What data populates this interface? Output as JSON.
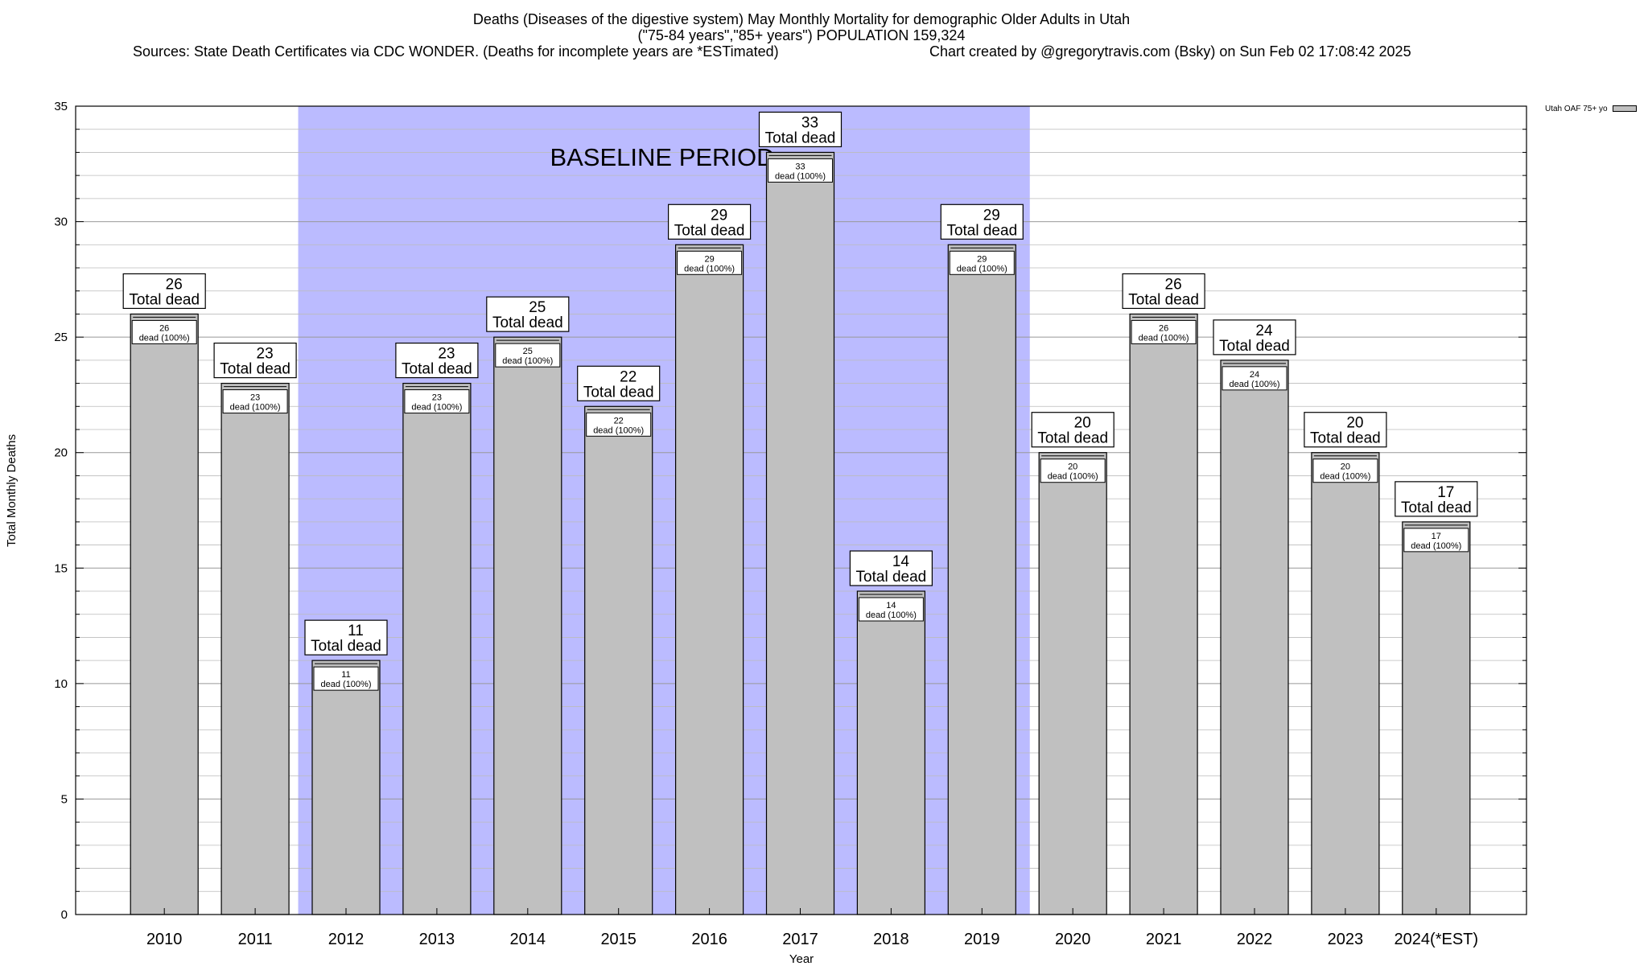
{
  "title": {
    "line1": "Deaths (Diseases of the digestive system) May Monthly Mortality for demographic Older Adults in Utah",
    "line2": "(\"75-84 years\",\"85+ years\") POPULATION 159,324",
    "sources": "Sources: State Death Certificates via CDC WONDER. (Deaths for incomplete years are *ESTimated)",
    "credit": "Chart created by @gregorytravis.com (Bsky) on Sun Feb 02 17:08:42 2025"
  },
  "legend": {
    "label": "Utah OAF 75+ yo"
  },
  "chart_data": {
    "type": "bar",
    "categories": [
      "2010",
      "2011",
      "2012",
      "2013",
      "2014",
      "2015",
      "2016",
      "2017",
      "2018",
      "2019",
      "2020",
      "2021",
      "2022",
      "2023",
      "2024(*EST)"
    ],
    "series": [
      {
        "name": "Utah OAF 75+ yo",
        "values": [
          26,
          23,
          11,
          23,
          25,
          22,
          29,
          33,
          14,
          29,
          20,
          26,
          24,
          20,
          17
        ]
      }
    ],
    "xlabel": "Year",
    "ylabel": "Total Monthly Deaths",
    "ylim": [
      0,
      35
    ],
    "yticks": [
      0,
      5,
      10,
      15,
      20,
      25,
      30,
      35
    ],
    "grid": true,
    "baseline_period": {
      "label": "BASELINE PERIOD",
      "start": "2012",
      "end": "2019",
      "color": "#bbbbff"
    },
    "bar_label_top": "Total dead",
    "bar_label_inner": "dead (100%)",
    "bar_color": "#c0c0c0",
    "legend_position": "top-right"
  }
}
